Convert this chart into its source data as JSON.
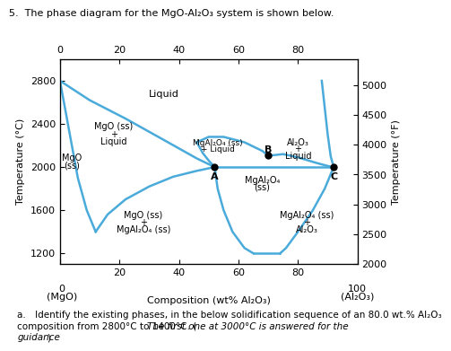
{
  "title": "5.  The phase diagram for the MgO-Al₂O₃ system is shown below.",
  "xlabel": "Composition (wt% Al₂O₃)",
  "ylabel_left": "Temperature (°C)",
  "ylabel_right": "Temperature (°F)",
  "line_color": "#4AABDB",
  "footnote_normal": "a. Identify the existing phases, in the below solidification sequence of an 80.0 wt.% Al₂O₃",
  "footnote_normal2": "composition from 2800°C to 1400°C. (",
  "footnote_italic": "The first one at 3000°C is answered for the",
  "footnote_italic2": "guidance",
  "footnote_end": ")"
}
